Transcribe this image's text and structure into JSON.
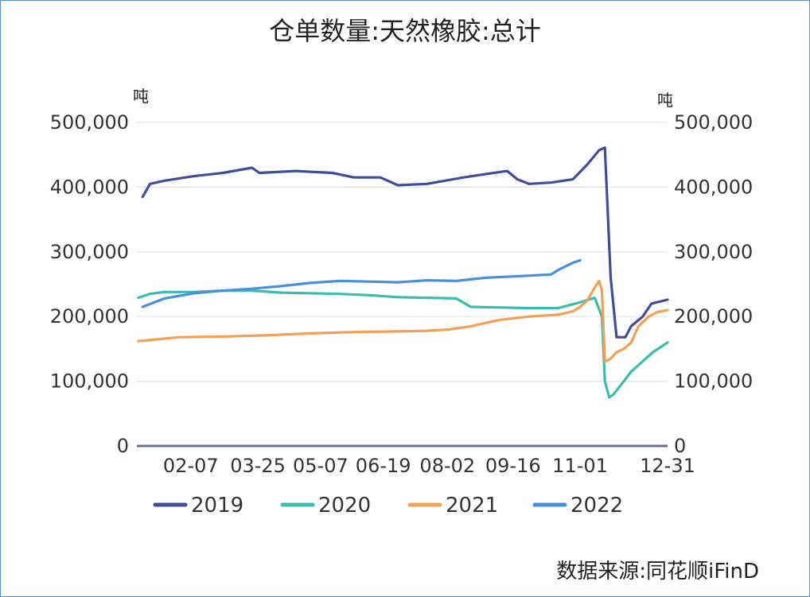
{
  "chart_data": {
    "type": "line",
    "title": "仓单数量:天然橡胶:总计",
    "y_unit_left": "吨",
    "y_unit_right": "吨",
    "ylim": [
      0,
      500000
    ],
    "yticks": [
      0,
      100000,
      200000,
      300000,
      400000,
      500000
    ],
    "ytick_labels": [
      "0",
      "100,000",
      "200,000",
      "300,000",
      "400,000",
      "500,000"
    ],
    "x_domain": [
      1,
      365
    ],
    "xtick_labels": [
      "02-07",
      "03-25",
      "05-07",
      "06-19",
      "08-02",
      "09-16",
      "11-01",
      "12-31"
    ],
    "xtick_positions": [
      38,
      84,
      127,
      170,
      214,
      259,
      305,
      365
    ],
    "grid": true,
    "legend_position": "bottom",
    "source": "数据来源:同花顺iFinD",
    "series": [
      {
        "name": "2019",
        "color": "#3f4e96",
        "x": [
          5,
          10,
          20,
          40,
          60,
          80,
          85,
          110,
          135,
          150,
          168,
          180,
          200,
          225,
          240,
          255,
          262,
          270,
          285,
          300,
          310,
          318,
          322,
          326,
          330,
          336,
          340,
          348,
          354,
          365
        ],
        "y": [
          385000,
          405000,
          410000,
          417000,
          422000,
          430000,
          422000,
          425000,
          422000,
          415000,
          415000,
          403000,
          405000,
          415000,
          420000,
          425000,
          412000,
          405000,
          407000,
          412000,
          435000,
          457000,
          461000,
          260000,
          168000,
          168000,
          185000,
          200000,
          220000,
          226000
        ]
      },
      {
        "name": "2020",
        "color": "#3cbcad",
        "x": [
          2,
          10,
          20,
          40,
          60,
          80,
          100,
          120,
          140,
          160,
          180,
          200,
          220,
          230,
          250,
          270,
          290,
          305,
          315,
          320,
          322,
          325,
          328,
          335,
          340,
          345,
          350,
          355,
          365
        ],
        "y": [
          229000,
          235000,
          238000,
          238000,
          240000,
          240000,
          237000,
          236000,
          235000,
          233000,
          230000,
          229000,
          228000,
          215000,
          214000,
          213000,
          213000,
          222000,
          229000,
          200000,
          100000,
          75000,
          80000,
          100000,
          115000,
          125000,
          135000,
          145000,
          160000
        ]
      },
      {
        "name": "2021",
        "color": "#f2a154",
        "x": [
          2,
          30,
          60,
          90,
          120,
          150,
          180,
          200,
          215,
          230,
          250,
          270,
          290,
          300,
          305,
          310,
          315,
          318,
          320,
          322,
          326,
          330,
          335,
          340,
          345,
          352,
          358,
          365
        ],
        "y": [
          162000,
          168000,
          169000,
          171000,
          174000,
          176000,
          177000,
          178000,
          180000,
          185000,
          195000,
          200000,
          203000,
          208000,
          215000,
          225000,
          245000,
          255000,
          240000,
          130000,
          135000,
          145000,
          150000,
          160000,
          185000,
          200000,
          207000,
          210000
        ]
      },
      {
        "name": "2022",
        "color": "#4a8fdc",
        "x": [
          5,
          20,
          40,
          60,
          80,
          100,
          120,
          140,
          160,
          180,
          200,
          220,
          240,
          260,
          285,
          290,
          300,
          305
        ],
        "y": [
          215000,
          228000,
          236000,
          240000,
          243000,
          247000,
          252000,
          255000,
          254000,
          253000,
          256000,
          255000,
          260000,
          262000,
          265000,
          272000,
          283000,
          287000
        ]
      }
    ]
  }
}
